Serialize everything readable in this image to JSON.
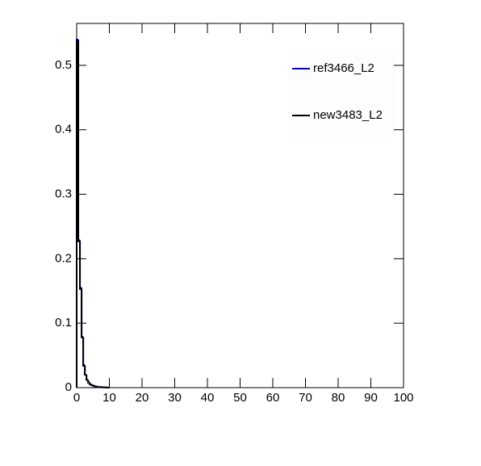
{
  "chart_data": {
    "type": "histogram",
    "bins": [
      0,
      0.5,
      1,
      1.5,
      2,
      2.5,
      3,
      3.5,
      4,
      4.5,
      5,
      5.5,
      6,
      6.5,
      7,
      7.5,
      8,
      8.5,
      9,
      9.5,
      10
    ],
    "series": [
      {
        "name": "ref3466_L2",
        "color": "#0000cc",
        "values": [
          0.54,
          0.229,
          0.155,
          0.079,
          0.035,
          0.02,
          0.012,
          0.008,
          0.005,
          0.004,
          0.003,
          0.002,
          0.0015,
          0.001,
          0.001,
          0.0008,
          0.0005,
          0.0004,
          0.0003,
          0.0002
        ]
      },
      {
        "name": "new3483_L2",
        "color": "#000000",
        "values": [
          0.538,
          0.227,
          0.153,
          0.078,
          0.034,
          0.02,
          0.012,
          0.008,
          0.005,
          0.004,
          0.003,
          0.002,
          0.0015,
          0.001,
          0.001,
          0.0008,
          0.0005,
          0.0004,
          0.0003,
          0.0002
        ]
      }
    ],
    "xlim": [
      0,
      100
    ],
    "xticks": [
      0,
      10,
      20,
      30,
      40,
      50,
      60,
      70,
      80,
      90,
      100
    ],
    "ylim": [
      0,
      0.565
    ],
    "yticks": [
      0,
      0.1,
      0.2,
      0.3,
      0.4,
      0.5
    ],
    "legend": "top-right"
  }
}
